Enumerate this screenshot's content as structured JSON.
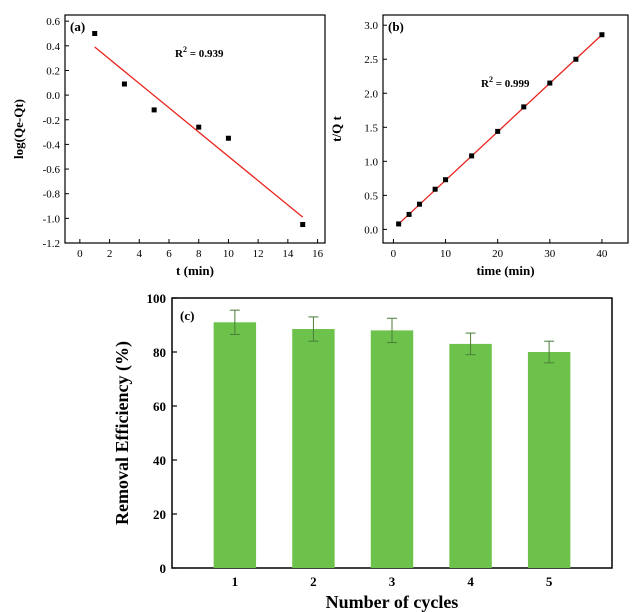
{
  "chart_data": [
    {
      "panel_label": "(a)",
      "type": "scatter",
      "xlabel": "t (min)",
      "ylabel": "log(Qe-Qt)",
      "xlim": [
        -1,
        16.5
      ],
      "ylim": [
        -1.2,
        0.65
      ],
      "xticks": [
        "0",
        "2",
        "4",
        "6",
        "8",
        "10",
        "12",
        "14",
        "16"
      ],
      "yticks": [
        "0.6",
        "0.4",
        "0.2",
        "0.0",
        "-0.2",
        "-0.4",
        "-0.6",
        "-0.8",
        "-1.0",
        "-1.2"
      ],
      "points": {
        "x": [
          1,
          3,
          5,
          8,
          10,
          15
        ],
        "y": [
          0.5,
          0.09,
          -0.12,
          -0.26,
          -0.35,
          -1.05
        ]
      },
      "fit": {
        "x": [
          1,
          15
        ],
        "y": [
          0.39,
          -0.99
        ],
        "color": "#e8231d"
      },
      "annotation": {
        "text_main": "R",
        "sup": "2",
        "text_rest": " = 0.939"
      }
    },
    {
      "panel_label": "(b)",
      "type": "line",
      "xlabel": "time (min)",
      "ylabel": "t/Q t",
      "xlim": [
        -2,
        45
      ],
      "ylim": [
        -0.2,
        3.15
      ],
      "xticks": [
        "0",
        "10",
        "20",
        "30",
        "40"
      ],
      "yticks": [
        "3.0",
        "2.5",
        "2.0",
        "1.5",
        "1.0",
        "0.5",
        "0.0"
      ],
      "points": {
        "x": [
          1,
          3,
          5,
          8,
          10,
          15,
          20,
          25,
          30,
          35,
          40
        ],
        "y": [
          0.08,
          0.22,
          0.37,
          0.59,
          0.73,
          1.08,
          1.44,
          1.8,
          2.15,
          2.5,
          2.86
        ]
      },
      "fit": {
        "x": [
          1,
          40
        ],
        "y": [
          0.08,
          2.86
        ],
        "color": "#e8231d"
      },
      "annotation": {
        "text_main": "R",
        "sup": "2",
        "text_rest": " = 0.999"
      }
    },
    {
      "panel_label": "(c)",
      "type": "bar",
      "xlabel": "Number of cycles",
      "ylabel": "Removal Efficiency (%)",
      "categories": [
        "1",
        "2",
        "3",
        "4",
        "5"
      ],
      "values": [
        91,
        88.5,
        88,
        83,
        80
      ],
      "errors": [
        4.5,
        4.5,
        4.5,
        4,
        4
      ],
      "ylim": [
        0,
        100
      ],
      "yticks": [
        "0",
        "20",
        "40",
        "60",
        "80",
        "100"
      ],
      "bar_color": "#6cc24a"
    }
  ]
}
